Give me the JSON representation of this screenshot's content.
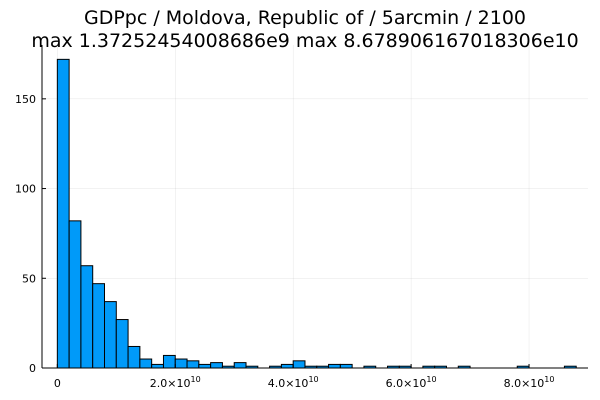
{
  "chart_data": {
    "type": "bar",
    "title_line1": "GDPpc / Moldova, Republic of / 5arcmin / 2100",
    "title_line2": "max 1.37252454008686e9  max 8.678906167018306e10",
    "xlabel": "",
    "ylabel": "",
    "bin_width": 2000000000,
    "bin_start": 0,
    "values": [
      172,
      82,
      57,
      47,
      37,
      27,
      12,
      5,
      2,
      7,
      5,
      4,
      2,
      3,
      1,
      3,
      1,
      0,
      1,
      2,
      4,
      1,
      1,
      2,
      2,
      0,
      1,
      0,
      1,
      1,
      0,
      1,
      1,
      0,
      1,
      0,
      0,
      0,
      0,
      1,
      0,
      0,
      0,
      1
    ],
    "xlim": [
      -2600000000,
      90000000000
    ],
    "ylim": [
      0,
      180
    ],
    "x_ticks": [
      {
        "value": 0,
        "mantissa": "0",
        "exponent": ""
      },
      {
        "value": 20000000000,
        "mantissa": "2.0×10",
        "exponent": "10"
      },
      {
        "value": 40000000000,
        "mantissa": "4.0×10",
        "exponent": "10"
      },
      {
        "value": 60000000000,
        "mantissa": "6.0×10",
        "exponent": "10"
      },
      {
        "value": 80000000000,
        "mantissa": "8.0×10",
        "exponent": "10"
      }
    ],
    "y_ticks": [
      {
        "value": 0,
        "label": "0"
      },
      {
        "value": 50,
        "label": "50"
      },
      {
        "value": 100,
        "label": "100"
      },
      {
        "value": 150,
        "label": "150"
      }
    ],
    "grid": true,
    "legend": "none",
    "bar_color": "#009af9"
  }
}
